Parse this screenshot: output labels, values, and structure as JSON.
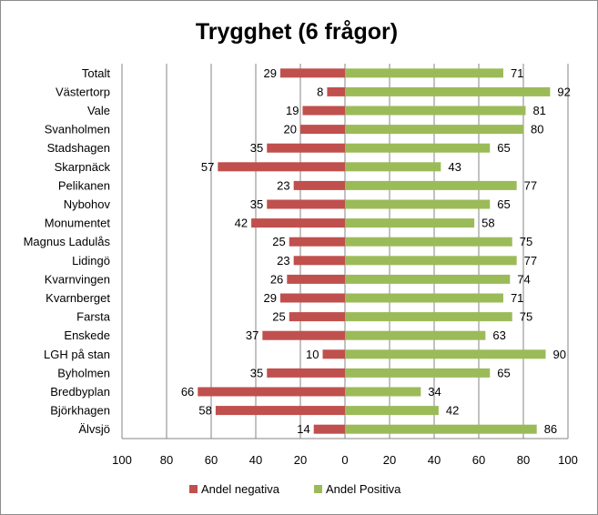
{
  "chart_data": {
    "type": "bar",
    "orientation": "horizontal-diverging",
    "title": "Trygghet (6 frågor)",
    "categories": [
      "Totalt",
      "Västertorp",
      "Vale",
      "Svanholmen",
      "Stadshagen",
      "Skarpnäck",
      "Pelikanen",
      "Nybohov",
      "Monumentet",
      "Magnus Ladulås",
      "Lidingö",
      "Kvarnvingen",
      "Kvarnberget",
      "Farsta",
      "Enskede",
      "LGH på stan",
      "Byholmen",
      "Bredbyplan",
      "Björkhagen",
      "Älvsjö"
    ],
    "series": [
      {
        "name": "Andel negativa",
        "color": "#c0504d",
        "direction": "left",
        "values": [
          29,
          8,
          19,
          20,
          35,
          57,
          23,
          35,
          42,
          25,
          23,
          26,
          29,
          25,
          37,
          10,
          35,
          66,
          58,
          14
        ]
      },
      {
        "name": "Andel Positiva",
        "color": "#9bbb59",
        "direction": "right",
        "values": [
          71,
          92,
          81,
          80,
          65,
          43,
          77,
          65,
          58,
          75,
          77,
          74,
          71,
          75,
          63,
          90,
          65,
          34,
          42,
          86
        ]
      }
    ],
    "xticks": [
      "100",
      "80",
      "60",
      "40",
      "20",
      "0",
      "20",
      "40",
      "60",
      "80",
      "100"
    ],
    "xlim": [
      -100,
      100
    ],
    "grid": "vertical",
    "legend_position": "bottom"
  }
}
